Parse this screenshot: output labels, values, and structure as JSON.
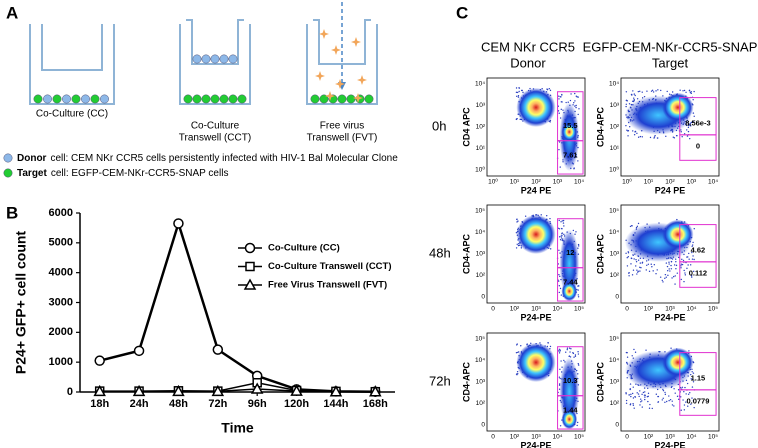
{
  "panel_a": {
    "label": "A",
    "wells": [
      [
        "Co-Culture (CC)"
      ],
      [
        "Co-Culture",
        "Transwell (CCT)"
      ],
      [
        "Free virus",
        "Transwell (FVT)"
      ]
    ],
    "legend": [
      {
        "term": "Donor",
        "text": "cell:  CEM NKr CCR5 cells persistently infected with HIV-1 Bal Molecular Clone"
      },
      {
        "term": "Target",
        "text": "cell:  EGFP-CEM-NKr-CCR5-SNAP cells"
      }
    ]
  },
  "chart_data": {
    "type": "line",
    "label": "B",
    "ylabel": "P24+ GFP+ cell count",
    "xlabel": "Time",
    "categories": [
      "18h",
      "24h",
      "48h",
      "72h",
      "96h",
      "120h",
      "144h",
      "168h"
    ],
    "series": [
      {
        "name": "Co-Culture (CC)",
        "color": "#000000",
        "marker": "circle",
        "values": [
          1050,
          1380,
          5650,
          1420,
          540,
          90,
          20,
          10
        ]
      },
      {
        "name": "Co-Culture Transwell (CCT)",
        "color": "#000000",
        "marker": "square",
        "values": [
          30,
          30,
          40,
          30,
          310,
          50,
          20,
          10
        ]
      },
      {
        "name": "Free Virus Transwell (FVT)",
        "color": "#000000",
        "marker": "triangle",
        "values": [
          20,
          20,
          20,
          20,
          100,
          30,
          10,
          10
        ]
      }
    ],
    "ylim": [
      0,
      6000
    ],
    "yticks": [
      0,
      1000,
      2000,
      3000,
      4000,
      5000,
      6000
    ]
  },
  "panel_c": {
    "label": "C",
    "columns": [
      [
        "CEM NKr CCR5",
        "Donor"
      ],
      [
        "EGFP-CEM-NKr-CCR5-SNAP",
        "Target"
      ]
    ],
    "rows": [
      {
        "time": "0h",
        "x_ticks": [
          "10⁰",
          "10¹",
          "10²",
          "10³",
          "10⁴"
        ],
        "y_ticks": [
          "10⁰",
          "10¹",
          "10²",
          "10³",
          "10⁴"
        ],
        "plots": [
          {
            "ylabel": "CD4 APC",
            "xlabel": "P24 PE",
            "gates": [
              "15.5",
              "7.61"
            ]
          },
          {
            "ylabel": "CD4-APC",
            "xlabel": "P24 PE",
            "gates": [
              "8.56e-3",
              "0"
            ]
          }
        ]
      },
      {
        "time": "48h",
        "x_ticks": [
          "0",
          "10²",
          "10³",
          "10⁴",
          "10⁵"
        ],
        "y_ticks": [
          "0",
          "10²",
          "10³",
          "10⁴",
          "10⁵"
        ],
        "plots": [
          {
            "ylabel": "CD4-APC",
            "xlabel": "P24-PE",
            "gates": [
              "12",
              "7.44"
            ]
          },
          {
            "ylabel": "CD4-APC",
            "xlabel": "P24-PE",
            "gates": [
              "4.62",
              "0.112"
            ]
          }
        ]
      },
      {
        "time": "72h",
        "x_ticks": [
          "0",
          "10²",
          "10³",
          "10⁴",
          "10⁵"
        ],
        "y_ticks": [
          "0",
          "10²",
          "10³",
          "10⁴",
          "10⁵"
        ],
        "plots": [
          {
            "ylabel": "CD4-APC",
            "xlabel": "P24-PE",
            "gates": [
              "10.3",
              "1.44"
            ]
          },
          {
            "ylabel": "CD4-APC",
            "xlabel": "P24-PE",
            "gates": [
              "1.15",
              "0.0779"
            ]
          }
        ]
      }
    ]
  }
}
